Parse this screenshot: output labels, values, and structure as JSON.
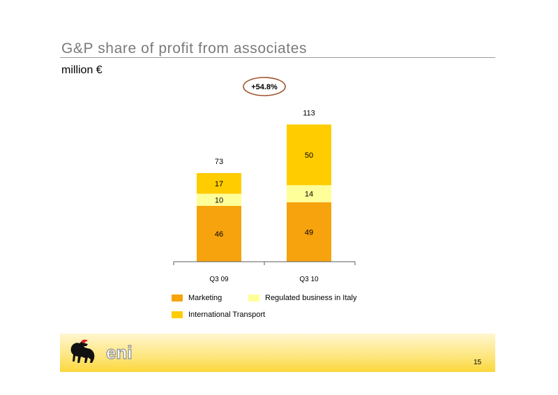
{
  "header": {
    "title": "G&P share of profit from associates",
    "subtitle": "million €"
  },
  "footer": {
    "page_number": "15",
    "logo_text": "eni"
  },
  "colors": {
    "marketing": "#f7a30d",
    "regulated": "#ffff99",
    "international": "#ffcc00",
    "badge_border": "#a0522d",
    "axis": "#5c5c5c"
  },
  "chart_data": {
    "type": "bar",
    "stacked": true,
    "categories": [
      "Q3 09",
      "Q3 10"
    ],
    "series": [
      {
        "name": "Marketing",
        "values": [
          46,
          49
        ],
        "color": "#f7a30d"
      },
      {
        "name": "Regulated business in Italy",
        "values": [
          10,
          14
        ],
        "color": "#ffff99"
      },
      {
        "name": "International Transport",
        "values": [
          17,
          50
        ],
        "color": "#ffcc00"
      }
    ],
    "totals": [
      73,
      113
    ],
    "annotation": "+54.8%",
    "grid": false,
    "legend_placement": "bottom",
    "title": "",
    "xlabel": "",
    "ylabel": ""
  }
}
